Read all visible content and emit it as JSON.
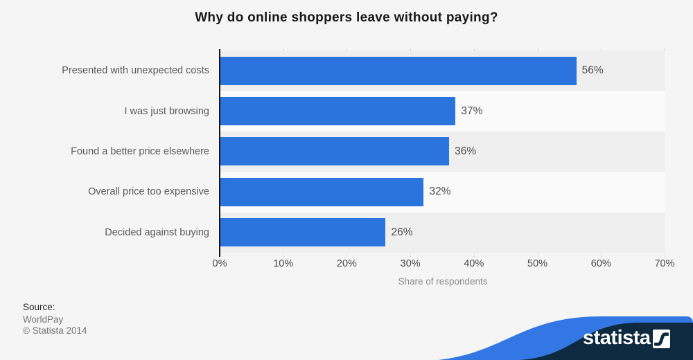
{
  "title": "Why do online shoppers leave without paying?",
  "chart_data": {
    "type": "bar",
    "orientation": "horizontal",
    "categories": [
      "Presented with unexpected costs",
      "I was just browsing",
      "Found a better price elsewhere",
      "Overall price too expensive",
      "Decided against buying"
    ],
    "values": [
      56,
      37,
      36,
      32,
      26
    ],
    "value_labels": [
      "56%",
      "37%",
      "36%",
      "32%",
      "26%"
    ],
    "title": "Why do online shoppers leave without paying?",
    "xlabel": "Share of respondents",
    "ylabel": "",
    "x_ticks": [
      "0%",
      "10%",
      "20%",
      "30%",
      "40%",
      "50%",
      "60%",
      "70%"
    ],
    "xlim": [
      0,
      70
    ],
    "grid": "vertical-dotted",
    "legend": "none"
  },
  "source": {
    "label": "Source:",
    "name": "WorldPay",
    "copyright": "© Statista 2014"
  },
  "branding": {
    "wordmark": "statista",
    "logo_mark_icon": "statista-swoosh-icon"
  },
  "colors": {
    "background": "#f5f5f5",
    "row_odd": "#efefef",
    "row_even": "#fafafa",
    "bar": "#2c74dd",
    "axis": "#161616",
    "gridline": "#c6c6c6",
    "banner_navy": "#0e2a40",
    "banner_blue": "#3277e3"
  }
}
